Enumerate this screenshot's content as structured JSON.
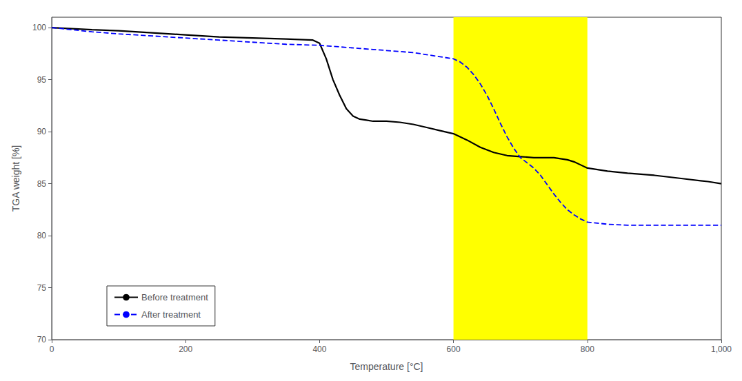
{
  "chart_data": {
    "type": "line",
    "xlabel": "Temperature [°C]",
    "ylabel": "TGA weight [%]",
    "xlim": [
      0,
      1000
    ],
    "ylim": [
      70,
      101
    ],
    "xticks": [
      0,
      200,
      400,
      600,
      800,
      1000
    ],
    "yticks": [
      70,
      75,
      80,
      85,
      90,
      95,
      100
    ],
    "grid": false,
    "legend": "lower left",
    "highlight": {
      "x": [
        600,
        800
      ],
      "color": "#FFFF00"
    },
    "series": [
      {
        "name": "Before treatment",
        "color": "#000000",
        "line_style": "solid",
        "x": [
          0,
          30,
          60,
          100,
          150,
          200,
          250,
          300,
          350,
          390,
          400,
          410,
          420,
          430,
          440,
          450,
          460,
          470,
          480,
          490,
          500,
          520,
          540,
          560,
          580,
          600,
          620,
          640,
          660,
          680,
          700,
          720,
          730,
          740,
          750,
          760,
          770,
          780,
          790,
          800,
          830,
          860,
          900,
          940,
          980,
          1000
        ],
        "values": [
          100,
          99.9,
          99.8,
          99.7,
          99.5,
          99.3,
          99.1,
          99.0,
          98.9,
          98.8,
          98.5,
          97.0,
          95.0,
          93.5,
          92.2,
          91.5,
          91.2,
          91.1,
          91.0,
          91.0,
          91.0,
          90.9,
          90.7,
          90.4,
          90.1,
          89.8,
          89.2,
          88.5,
          88.0,
          87.7,
          87.6,
          87.5,
          87.5,
          87.5,
          87.5,
          87.4,
          87.3,
          87.1,
          86.8,
          86.5,
          86.2,
          86.0,
          85.8,
          85.5,
          85.2,
          85.0
        ]
      },
      {
        "name": "After treatment",
        "color": "#0000FF",
        "line_style": "dashed",
        "x": [
          0,
          30,
          60,
          100,
          150,
          200,
          250,
          300,
          350,
          400,
          440,
          460,
          480,
          500,
          520,
          540,
          560,
          580,
          600,
          610,
          620,
          630,
          640,
          650,
          660,
          670,
          680,
          690,
          700,
          710,
          720,
          730,
          740,
          750,
          760,
          770,
          780,
          790,
          800,
          830,
          860,
          900,
          950,
          1000
        ],
        "values": [
          100,
          99.8,
          99.6,
          99.4,
          99.2,
          99.0,
          98.8,
          98.6,
          98.4,
          98.3,
          98.1,
          98.0,
          97.9,
          97.8,
          97.7,
          97.6,
          97.4,
          97.2,
          97.0,
          96.7,
          96.2,
          95.5,
          94.6,
          93.5,
          92.2,
          90.8,
          89.5,
          88.4,
          87.5,
          87.0,
          86.5,
          85.8,
          84.9,
          84.0,
          83.2,
          82.5,
          82.0,
          81.6,
          81.3,
          81.1,
          81.0,
          81.0,
          81.0,
          81.0
        ]
      }
    ]
  }
}
